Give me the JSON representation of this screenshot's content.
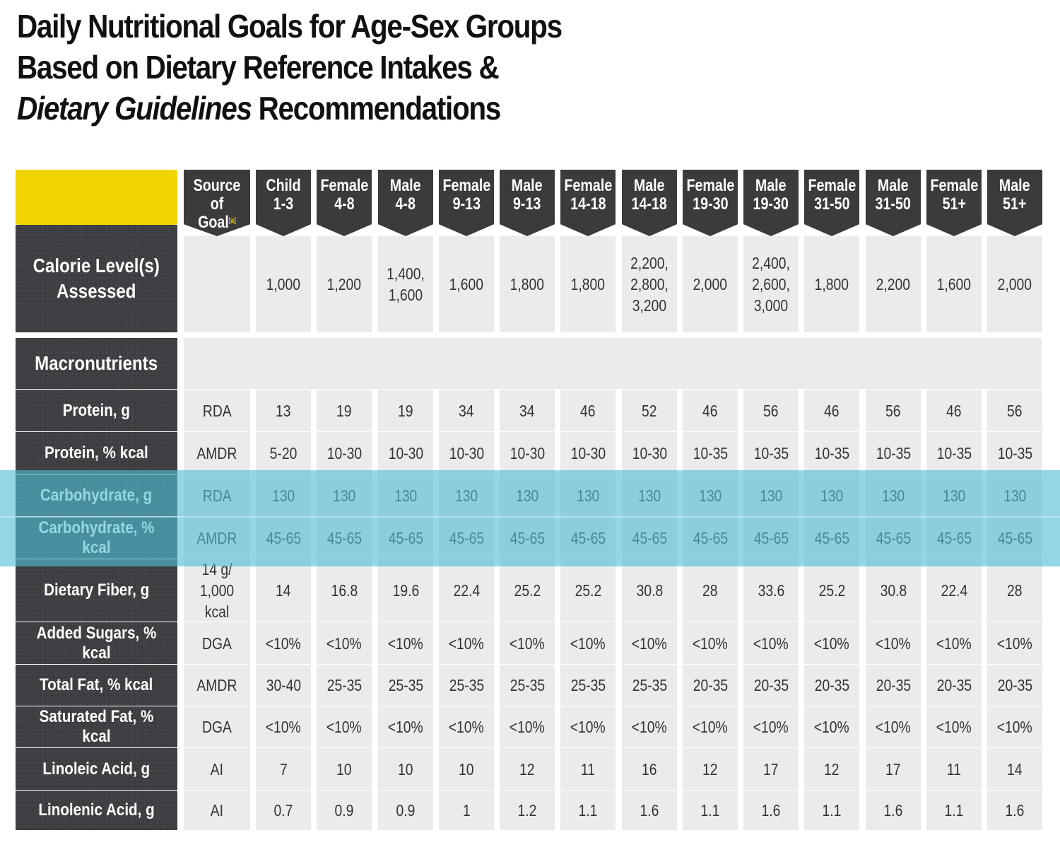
{
  "title": {
    "line1": "Daily Nutritional Goals for Age-Sex Groups",
    "line2": "Based on Dietary Reference Intakes &",
    "line3_italic": "Dietary Guidelines",
    "line3_rest": " Recommendations"
  },
  "table": {
    "source_header": "Source\nof Goal",
    "source_footnote": "[a]",
    "column_headers": [
      "Child\n1-3",
      "Female\n4-8",
      "Male\n4-8",
      "Female\n9-13",
      "Male\n9-13",
      "Female\n14-18",
      "Male\n14-18",
      "Female\n19-30",
      "Male\n19-30",
      "Female\n31-50",
      "Male\n31-50",
      "Female\n51+",
      "Male\n51+"
    ],
    "calorie_row": {
      "label": "Calorie Level(s)\nAssessed",
      "source": "",
      "values": [
        "1,000",
        "1,200",
        "1,400,\n1,600",
        "1,600",
        "1,800",
        "1,800",
        "2,200,\n2,800,\n3,200",
        "2,000",
        "2,400,\n2,600,\n3,000",
        "1,800",
        "2,200",
        "1,600",
        "2,000"
      ]
    },
    "section_label": "Macronutrients",
    "rows": [
      {
        "label": "Protein, g",
        "source": "RDA",
        "values": [
          "13",
          "19",
          "19",
          "34",
          "34",
          "46",
          "52",
          "46",
          "56",
          "46",
          "56",
          "46",
          "56"
        ]
      },
      {
        "label": "Protein, % kcal",
        "source": "AMDR",
        "values": [
          "5-20",
          "10-30",
          "10-30",
          "10-30",
          "10-30",
          "10-30",
          "10-30",
          "10-35",
          "10-35",
          "10-35",
          "10-35",
          "10-35",
          "10-35"
        ]
      },
      {
        "label": "Carbohydrate, g",
        "source": "RDA",
        "highlight": true,
        "values": [
          "130",
          "130",
          "130",
          "130",
          "130",
          "130",
          "130",
          "130",
          "130",
          "130",
          "130",
          "130",
          "130"
        ]
      },
      {
        "label": "Carbohydrate, % kcal",
        "source": "AMDR",
        "highlight": true,
        "values": [
          "45-65",
          "45-65",
          "45-65",
          "45-65",
          "45-65",
          "45-65",
          "45-65",
          "45-65",
          "45-65",
          "45-65",
          "45-65",
          "45-65",
          "45-65"
        ]
      },
      {
        "label": "Dietary Fiber, g",
        "source": "14 g/\n1,000 kcal",
        "values": [
          "14",
          "16.8",
          "19.6",
          "22.4",
          "25.2",
          "25.2",
          "30.8",
          "28",
          "33.6",
          "25.2",
          "30.8",
          "22.4",
          "28"
        ]
      },
      {
        "label": "Added Sugars, % kcal",
        "source": "DGA",
        "values": [
          "<10%",
          "<10%",
          "<10%",
          "<10%",
          "<10%",
          "<10%",
          "<10%",
          "<10%",
          "<10%",
          "<10%",
          "<10%",
          "<10%",
          "<10%"
        ]
      },
      {
        "label": "Total Fat, % kcal",
        "source": "AMDR",
        "values": [
          "30-40",
          "25-35",
          "25-35",
          "25-35",
          "25-35",
          "25-35",
          "25-35",
          "20-35",
          "20-35",
          "20-35",
          "20-35",
          "20-35",
          "20-35"
        ]
      },
      {
        "label": "Saturated Fat, % kcal",
        "source": "DGA",
        "values": [
          "<10%",
          "<10%",
          "<10%",
          "<10%",
          "<10%",
          "<10%",
          "<10%",
          "<10%",
          "<10%",
          "<10%",
          "<10%",
          "<10%",
          "<10%"
        ]
      },
      {
        "label": "Linoleic Acid, g",
        "source": "AI",
        "values": [
          "7",
          "10",
          "10",
          "10",
          "12",
          "11",
          "16",
          "12",
          "17",
          "12",
          "17",
          "11",
          "14"
        ]
      },
      {
        "label": "Linolenic Acid, g",
        "source": "AI",
        "values": [
          "0.7",
          "0.9",
          "0.9",
          "1",
          "1.2",
          "1.1",
          "1.6",
          "1.1",
          "1.6",
          "1.1",
          "1.6",
          "1.1",
          "1.6"
        ]
      }
    ]
  },
  "colors": {
    "row_label_bg": "#3d3f42",
    "header_bg": "#3b3b3b",
    "corner_accent": "#f1d500",
    "cell_bg": "#ebebeb",
    "highlight": "#50bed7"
  }
}
